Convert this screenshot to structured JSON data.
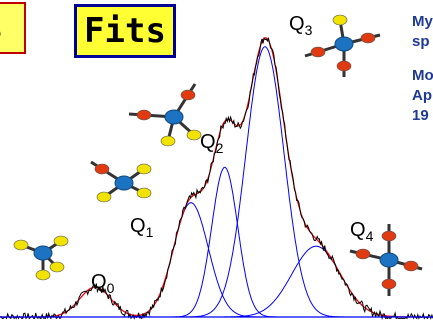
{
  "header": {
    "left_box_text": "s",
    "fits_label": "Fits"
  },
  "side_text": [
    "My",
    "sp",
    "Mo",
    "Ap",
    "19"
  ],
  "chart_data": {
    "type": "line",
    "title": "Fits",
    "x": [
      0,
      433
    ],
    "ylim": [
      0,
      1
    ],
    "colors": {
      "spectrum": "#000000",
      "fit": "#ff0000",
      "components": "#0000ff",
      "baseline": "#0000ff"
    },
    "components": [
      {
        "label": "Q0",
        "center": 0.22,
        "height": 0.103,
        "width": 0.036
      },
      {
        "label": "Q1",
        "center": 0.441,
        "height": 0.394,
        "width": 0.04
      },
      {
        "label": "Q2",
        "center": 0.519,
        "height": 0.516,
        "width": 0.03
      },
      {
        "label": "Q3",
        "center": 0.612,
        "height": 0.932,
        "width": 0.044
      },
      {
        "label": "Q4",
        "center": 0.73,
        "height": 0.244,
        "width": 0.056
      }
    ],
    "peak_labels": [
      {
        "main": "Q",
        "sub": "0"
      },
      {
        "main": "Q",
        "sub": "1"
      },
      {
        "main": "Q",
        "sub": "2"
      },
      {
        "main": "Q",
        "sub": "3"
      },
      {
        "main": "Q",
        "sub": "4"
      }
    ]
  },
  "molecules": [
    {
      "name": "Q0",
      "arms": [
        "yellow",
        "yellow",
        "yellow",
        "yellow"
      ]
    },
    {
      "name": "Q1",
      "arms": [
        "red",
        "yellow",
        "yellow",
        "yellow"
      ]
    },
    {
      "name": "Q2",
      "arms": [
        "red",
        "red",
        "yellow",
        "yellow"
      ]
    },
    {
      "name": "Q3",
      "arms": [
        "red",
        "red",
        "red",
        "yellow"
      ]
    },
    {
      "name": "Q4",
      "arms": [
        "red",
        "red",
        "red",
        "red"
      ]
    }
  ]
}
